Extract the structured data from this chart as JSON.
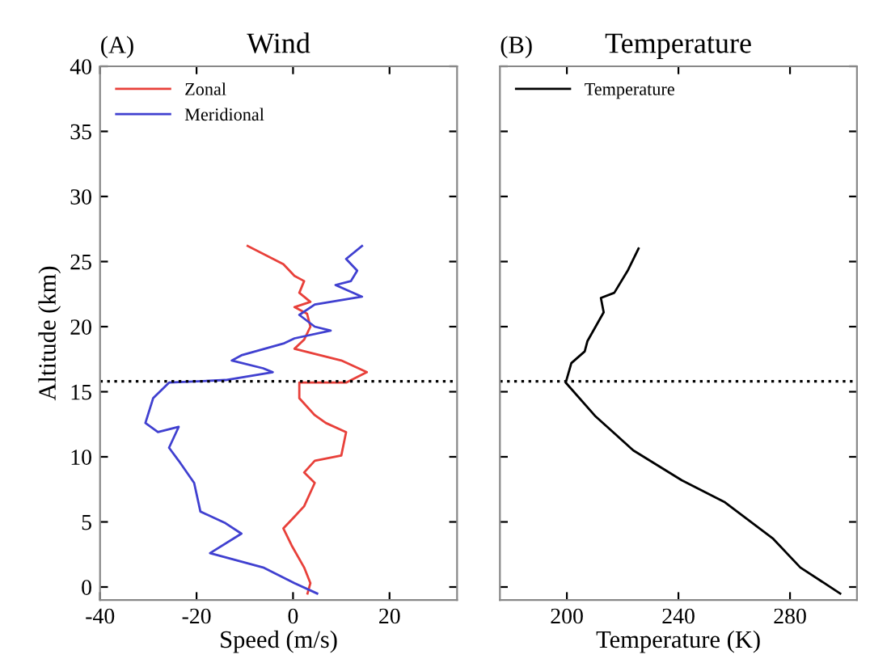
{
  "chart_data": [
    {
      "type": "line",
      "title": "Wind",
      "annotations": [
        "(A)"
      ],
      "xlabel": "Speed (m/s)",
      "ylabel": "Altitude (km)",
      "xlim": [
        -40,
        34
      ],
      "ylim": [
        -1,
        40
      ],
      "xticks": [
        -40,
        -20,
        0,
        20
      ],
      "yticks": [
        0,
        5,
        10,
        15,
        20,
        25,
        30,
        35,
        40
      ],
      "legend": "top left",
      "grid": false,
      "ref_lines": [
        {
          "axis": "y",
          "value": 15.8,
          "line_style": "dotted",
          "color": "#000000"
        }
      ],
      "series": [
        {
          "name": "Zonal",
          "color": "#e8403a",
          "x": [
            -9.4,
            -2,
            0.3,
            2.3,
            1.3,
            3.6,
            0.3,
            2.9,
            3.6,
            2.3,
            0.3,
            10,
            15.3,
            11,
            1.3,
            1.3,
            4.5,
            6.8,
            11,
            10,
            4.5,
            2.3,
            4.5,
            2.3,
            0.3,
            -2,
            -0.3,
            2.3,
            3.6,
            3
          ],
          "values": [
            26.2,
            24.8,
            23.9,
            23.5,
            22.6,
            21.9,
            21.5,
            21.0,
            20.0,
            19.0,
            18.3,
            17.4,
            16.5,
            15.7,
            15.7,
            14.5,
            13.2,
            12.6,
            11.9,
            10.1,
            9.7,
            8.8,
            8.0,
            6.2,
            5.4,
            4.5,
            3.2,
            1.5,
            0.3,
            -0.5
          ]
        },
        {
          "name": "Meridional",
          "color": "#4040d0",
          "x": [
            14.3,
            11,
            13.3,
            12,
            8.8,
            14.3,
            4.5,
            1.3,
            4.5,
            7.8,
            0.3,
            -2,
            -10.7,
            -12.7,
            -6.2,
            -4.2,
            -14,
            -25.7,
            -29,
            -30.6,
            -28,
            -23.7,
            -25.7,
            -23.7,
            -20.5,
            -19.2,
            -14,
            -10.7,
            -17.2,
            -6.2,
            0.3,
            5
          ],
          "values": [
            26.2,
            25.2,
            24.3,
            23.5,
            23.2,
            22.3,
            21.7,
            20.9,
            20.0,
            19.7,
            19.1,
            18.7,
            17.8,
            17.4,
            16.8,
            16.5,
            15.9,
            15.7,
            14.5,
            12.6,
            11.9,
            12.3,
            10.7,
            9.7,
            8.0,
            5.8,
            4.9,
            4.1,
            2.6,
            1.5,
            0.3,
            -0.5
          ]
        }
      ]
    },
    {
      "type": "line",
      "title": "Temperature",
      "annotations": [
        "(B)"
      ],
      "xlabel": "Temperature (K)",
      "xlim": [
        176,
        304
      ],
      "ylim": [
        -1,
        40
      ],
      "xticks": [
        200,
        240,
        280
      ],
      "yticks": [
        {
          "value": 0,
          "label": null
        },
        {
          "value": 5,
          "label": null
        },
        {
          "value": 10,
          "label": null
        },
        {
          "value": 15,
          "label": null
        },
        {
          "value": 20,
          "label": null
        },
        {
          "value": 25,
          "label": null
        },
        {
          "value": 30,
          "label": null
        },
        {
          "value": 35,
          "label": null
        },
        {
          "value": 40,
          "label": null
        }
      ],
      "tick_labels": "x",
      "legend": "top left",
      "grid": false,
      "ref_lines": [
        {
          "axis": "y",
          "value": 15.8,
          "line_style": "dotted",
          "color": "#000000"
        }
      ],
      "series": [
        {
          "name": "Temperature",
          "color": "#000000",
          "x": [
            225.7,
            221.8,
            217,
            212.2,
            213.2,
            210.3,
            207.4,
            206.4,
            201.6,
            199.6,
            210.3,
            223.8,
            241.2,
            256.7,
            274,
            283.7,
            298
          ],
          "values": [
            26.0,
            24.3,
            22.6,
            22.2,
            21.1,
            20.0,
            18.9,
            18.1,
            17.2,
            15.7,
            13.1,
            10.5,
            8.2,
            6.5,
            3.7,
            1.5,
            -0.5
          ]
        }
      ]
    }
  ]
}
